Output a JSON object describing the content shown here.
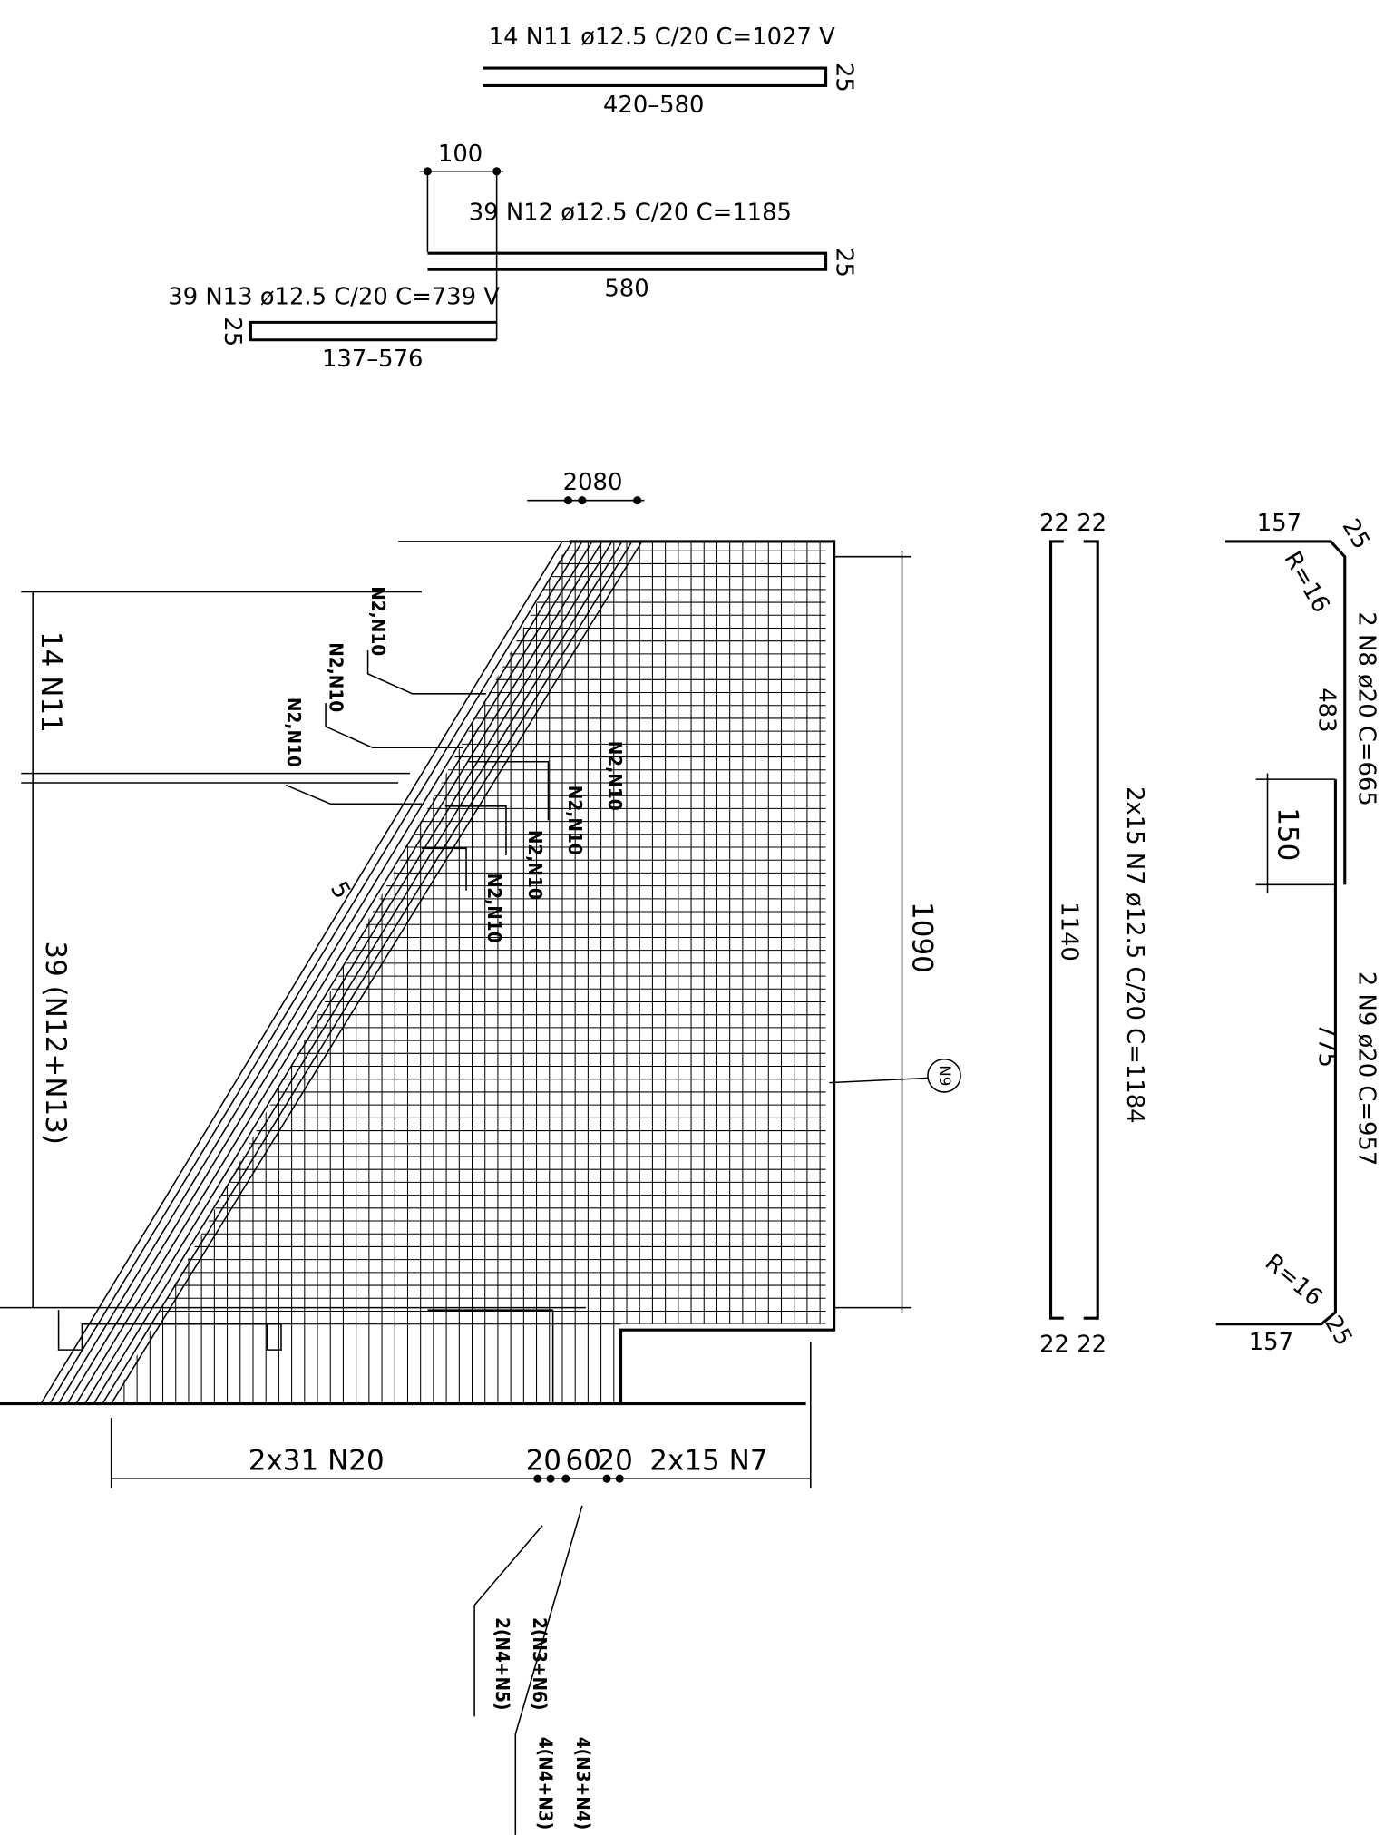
{
  "schedule": {
    "n11": {
      "spec": "14 N11 ø12.5 C/20 C=1027 V",
      "hook": "25",
      "length": "420–580"
    },
    "n12": {
      "offset": "100",
      "spec": "39 N12 ø12.5 C/20 C=1185",
      "hook": "25",
      "length": "580"
    },
    "n13": {
      "spec": "39 N13 ø12.5 C/20 C=739 V",
      "hook": "25",
      "length": "137–576"
    }
  },
  "elevation": {
    "top_dim": "2080",
    "left_upper": "14 N11",
    "left_lower": "39 (N12+N13)",
    "callouts": [
      "N2,N10",
      "N2,N10",
      "N2,N10",
      "N2,N10",
      "N2,N10",
      "N2,N10",
      "N2,N10"
    ],
    "count_mark": "5",
    "height": "1090",
    "tag": "N9",
    "bottom_dims": [
      "2x31 N20",
      "20",
      "60",
      "20",
      "2x15 N7"
    ],
    "leaders": [
      "2(N3+N6)",
      "2(N4+N5)",
      "4(N3+N4)",
      "4(N4+N3)"
    ]
  },
  "n7_bar": {
    "top_hooks": "22 22",
    "length": "1140",
    "spec": "2x15 N7 ø12.5 C/20 C=1184",
    "bottom_hooks": "22 22"
  },
  "n8_n9_bars": {
    "top_leg": "157",
    "top_hook": "25",
    "top_radius": "R=16",
    "n8_spec": "2 N8 ø20 C=665",
    "n8_length": "483",
    "lap": "150",
    "n9_spec": "2 N9 ø20 C=957",
    "n9_length": "775",
    "bottom_radius": "R=16",
    "bottom_hook": "25",
    "bottom_leg": "157"
  }
}
